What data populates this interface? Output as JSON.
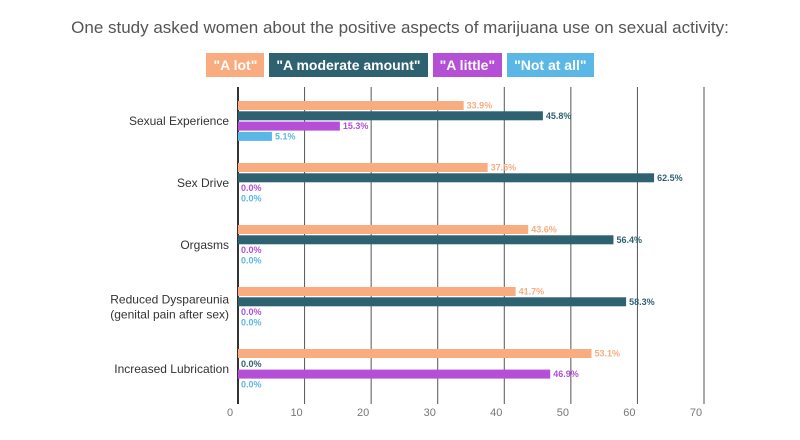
{
  "title": "One study asked women about the positive aspects of marijuana use on sexual activity:",
  "colors": [
    "#f8ac7f",
    "#2e6271",
    "#b44fd6",
    "#5ab7e6"
  ],
  "chart_data": {
    "type": "bar",
    "orientation": "horizontal",
    "title": "One study asked women about the positive aspects of marijuana use on sexual activity:",
    "xlabel": "",
    "ylabel": "",
    "xlim": [
      0,
      70
    ],
    "xticks": [
      "0",
      "10",
      "20",
      "30",
      "40",
      "50",
      "60",
      "70"
    ],
    "grid": true,
    "legend_position": "top",
    "categories": [
      [
        "Sexual Experience"
      ],
      [
        "Sex Drive"
      ],
      [
        "Orgasms"
      ],
      [
        "Reduced Dyspareunia",
        "(genital pain after sex)"
      ],
      [
        "Increased Lubrication"
      ]
    ],
    "series": [
      {
        "name": "\"A lot\"",
        "values": [
          33.9,
          37.5,
          43.6,
          41.7,
          53.1
        ],
        "labels": [
          "33.9%",
          "37.5%",
          "43.6%",
          "41.7%",
          "53.1%"
        ]
      },
      {
        "name": "\"A moderate amount\"",
        "values": [
          45.8,
          62.5,
          56.4,
          58.3,
          0.0
        ],
        "labels": [
          "45.8%",
          "62.5%",
          "56.4%",
          "58.3%",
          "0.0%"
        ]
      },
      {
        "name": "\"A little\"",
        "values": [
          15.3,
          0.0,
          0.0,
          0.0,
          46.9
        ],
        "labels": [
          "15.3%",
          "0.0%",
          "0.0%",
          "0.0%",
          "46.9%"
        ]
      },
      {
        "name": "\"Not at all\"",
        "values": [
          5.1,
          0.0,
          0.0,
          0.0,
          0.0
        ],
        "labels": [
          "5.1%",
          "0.0%",
          "0.0%",
          "0.0%",
          "0.0%"
        ]
      }
    ]
  }
}
